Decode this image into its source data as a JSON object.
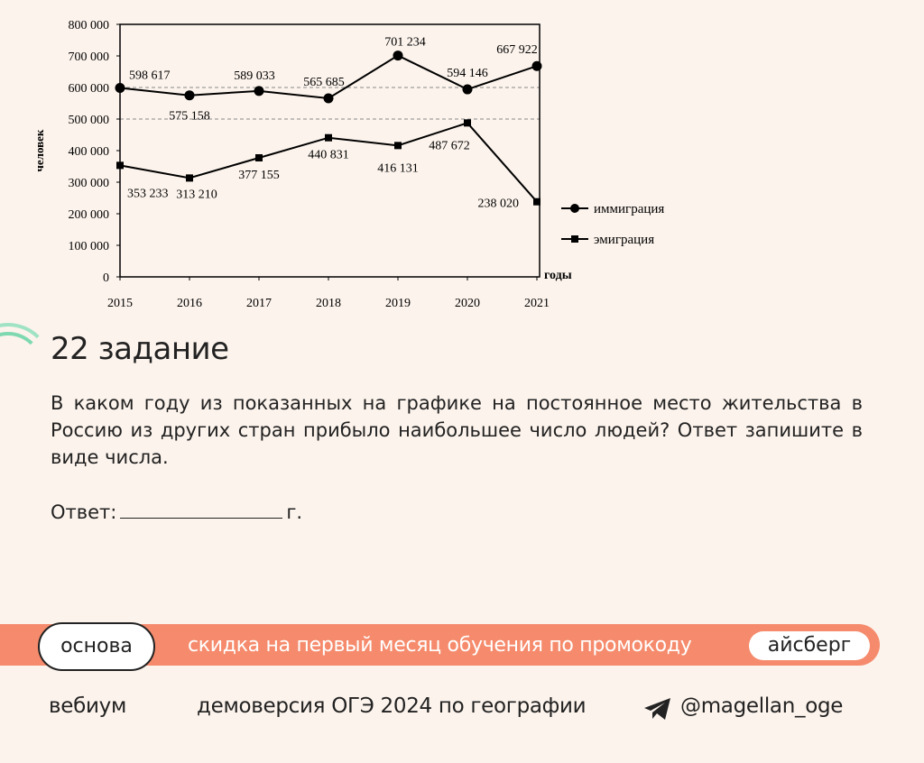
{
  "chart_data": {
    "type": "line",
    "x": [
      2015,
      2016,
      2017,
      2018,
      2019,
      2020,
      2021
    ],
    "series": [
      {
        "name": "иммиграция",
        "marker": "circle",
        "values": [
          598617,
          575158,
          589033,
          565685,
          701234,
          594146,
          667922
        ],
        "labels": [
          "598 617",
          "575 158",
          "589 033",
          "565 685",
          "701 234",
          "594 146",
          "667 922"
        ]
      },
      {
        "name": "эмиграция",
        "marker": "square",
        "values": [
          353233,
          313210,
          377155,
          440831,
          416131,
          487672,
          238020
        ],
        "labels": [
          "353 233",
          "313 210",
          "377 155",
          "440 831",
          "416 131",
          "487 672",
          "238 020"
        ]
      }
    ],
    "ylabel": "человек",
    "xlabel": "годы",
    "ylim": [
      0,
      800000
    ],
    "yticks": [
      "0",
      "100 000",
      "200 000",
      "300 000",
      "400 000",
      "500 000",
      "600 000",
      "700 000",
      "800 000"
    ],
    "reference_lines": [
      500000,
      600000
    ],
    "legend": "right"
  },
  "task": {
    "title": "22 задание",
    "question": "В каком году из показанных на графике на постоянное место жительства в Россию из других стран прибыло наибольшее число людей? Ответ запишите в виде числа.",
    "answer_prefix": "Ответ:",
    "answer_suffix": "г."
  },
  "promo": {
    "badge": "основа",
    "text": "скидка на первый месяц обучения по промокоду",
    "code": "айсберг"
  },
  "footer": {
    "brand": "вебиум",
    "subtitle": "демоверсия ОГЭ 2024 по географии",
    "channel": "@magellan_oge",
    "icon": "telegram-icon"
  },
  "colors": {
    "background": "#fcf3ec",
    "promo": "#f58b6c",
    "accent_arc": "#7fd9b0"
  }
}
